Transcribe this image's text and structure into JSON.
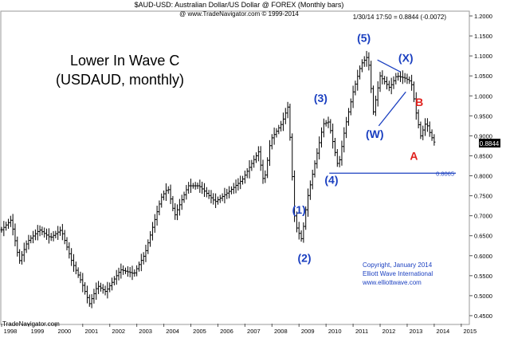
{
  "chart_data": {
    "type": "bar",
    "subtype": "ohlc-monthly",
    "header_title": "$AUD-USD:  Australian Dollar/US Dollar @ FOREX  (Monthly bars)",
    "header_copyright": "@ www.TradeNavigator.com © 1999-2014",
    "quote_line": "1/30/14 17:50 = 0.8844 (-0.0072)",
    "headline_line1": "Lower In Wave C",
    "headline_line2": "(USDAUD, monthly)",
    "watermark": "TradeNavigator.com",
    "copyright_lines": [
      "Copyright, January 2014",
      "Elliott Wave International",
      "www.elliottwave.com"
    ],
    "last_price_label": "0.8844",
    "reference_line": {
      "value": 0.8065,
      "label": "0.8065",
      "from_year": 2010.12,
      "to_year": 2014.8
    },
    "x_axis": {
      "ticks": [
        "1998",
        "1999",
        "2000",
        "2001",
        "2002",
        "2003",
        "2004",
        "2005",
        "2006",
        "2007",
        "2008",
        "2009",
        "2010",
        "2011",
        "2012",
        "2013",
        "2014",
        "2015"
      ],
      "range": [
        1998.0,
        2015.3
      ]
    },
    "y_axis": {
      "ticks": [
        "0.4500",
        "0.5000",
        "0.5500",
        "0.6000",
        "0.6500",
        "0.7000",
        "0.7500",
        "0.8000",
        "0.8500",
        "0.9000",
        "0.9500",
        "1.0000",
        "1.0500",
        "1.1000",
        "1.1500",
        "1.2000"
      ],
      "range": [
        0.43,
        1.21
      ],
      "side": "right"
    },
    "anchors": [
      [
        1998.0,
        0.665
      ],
      [
        1998.35,
        0.69
      ],
      [
        1998.65,
        0.585
      ],
      [
        1998.95,
        0.635
      ],
      [
        1999.4,
        0.665
      ],
      [
        1999.8,
        0.645
      ],
      [
        2000.2,
        0.665
      ],
      [
        2000.6,
        0.585
      ],
      [
        2000.95,
        0.535
      ],
      [
        2001.25,
        0.48
      ],
      [
        2001.55,
        0.525
      ],
      [
        2001.85,
        0.51
      ],
      [
        2002.4,
        0.565
      ],
      [
        2002.9,
        0.555
      ],
      [
        2003.3,
        0.605
      ],
      [
        2003.9,
        0.745
      ],
      [
        2004.15,
        0.77
      ],
      [
        2004.4,
        0.7
      ],
      [
        2004.9,
        0.775
      ],
      [
        2005.3,
        0.775
      ],
      [
        2005.9,
        0.735
      ],
      [
        2006.4,
        0.76
      ],
      [
        2006.9,
        0.79
      ],
      [
        2007.5,
        0.86
      ],
      [
        2007.7,
        0.78
      ],
      [
        2007.95,
        0.89
      ],
      [
        2008.35,
        0.93
      ],
      [
        2008.6,
        0.975
      ],
      [
        2008.85,
        0.68
      ],
      [
        2009.1,
        0.64
      ],
      [
        2009.3,
        0.74
      ],
      [
        2009.55,
        0.82
      ],
      [
        2009.9,
        0.93
      ],
      [
        2010.1,
        0.935
      ],
      [
        2010.45,
        0.82
      ],
      [
        2010.7,
        0.92
      ],
      [
        2011.0,
        1.01
      ],
      [
        2011.3,
        1.08
      ],
      [
        2011.55,
        1.1
      ],
      [
        2011.75,
        0.96
      ],
      [
        2012.0,
        1.05
      ],
      [
        2012.35,
        1.02
      ],
      [
        2012.6,
        1.05
      ],
      [
        2012.9,
        1.045
      ],
      [
        2013.15,
        1.035
      ],
      [
        2013.35,
        0.95
      ],
      [
        2013.5,
        0.9
      ],
      [
        2013.7,
        0.935
      ],
      [
        2013.85,
        0.905
      ],
      [
        2013.99,
        0.8844
      ]
    ],
    "annotations": [
      {
        "text": "(1)",
        "x": 2009.0,
        "y": 0.705,
        "color": "#1a3fc0"
      },
      {
        "text": "(2)",
        "x": 2009.2,
        "y": 0.585,
        "color": "#1a3fc0"
      },
      {
        "text": "(3)",
        "x": 2009.8,
        "y": 0.985,
        "color": "#1a3fc0"
      },
      {
        "text": "(4)",
        "x": 2010.2,
        "y": 0.78,
        "color": "#1a3fc0"
      },
      {
        "text": "(5)",
        "x": 2011.4,
        "y": 1.135,
        "color": "#1a3fc0"
      },
      {
        "text": "(W)",
        "x": 2011.8,
        "y": 0.895,
        "color": "#1a3fc0"
      },
      {
        "text": "(X)",
        "x": 2012.95,
        "y": 1.085,
        "color": "#1a3fc0"
      },
      {
        "text": "B",
        "x": 2013.45,
        "y": 0.975,
        "color": "#e0221e"
      },
      {
        "text": "A",
        "x": 2013.25,
        "y": 0.84,
        "color": "#e0221e"
      }
    ],
    "trendlines": [
      {
        "from": [
          2011.9,
          1.09
        ],
        "to": [
          2012.75,
          1.06
        ]
      },
      {
        "from": [
          2011.95,
          0.925
        ],
        "to": [
          2012.95,
          1.01
        ]
      }
    ]
  }
}
